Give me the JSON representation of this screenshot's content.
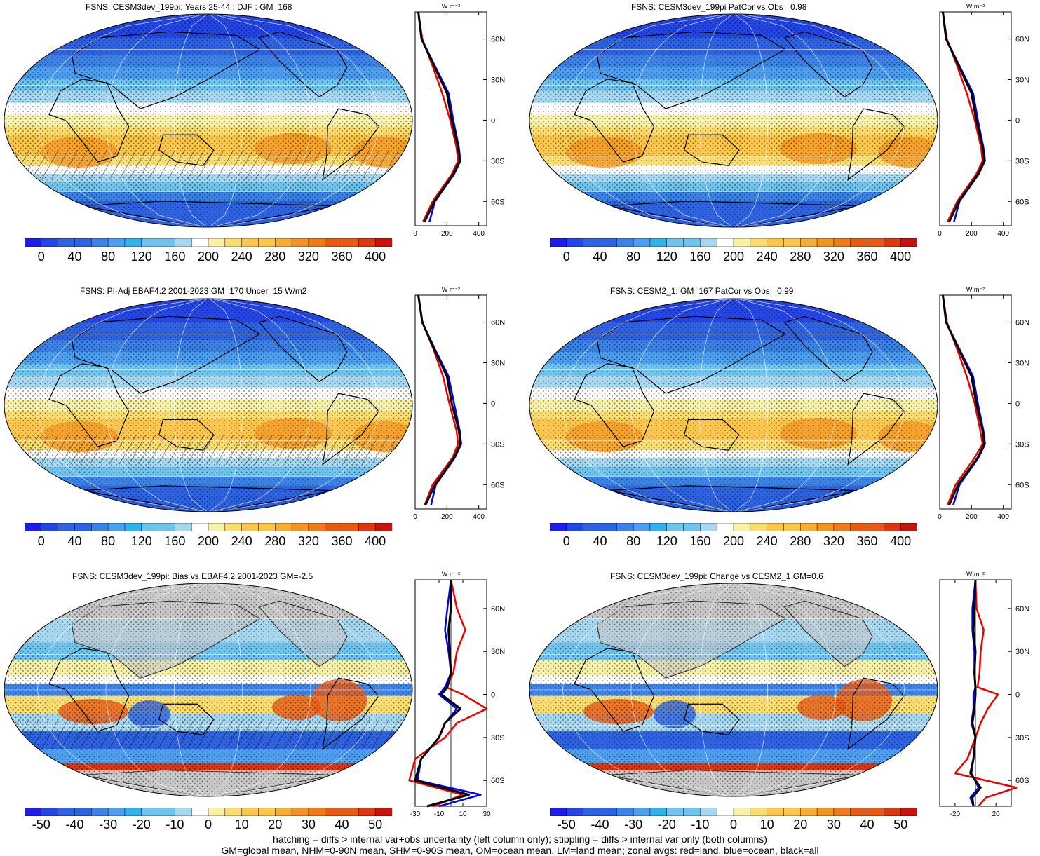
{
  "panels": [
    {
      "title": "FSNS: CESM3dev_199pi: Years 25-44 : DJF : GM=168",
      "scale": "abs",
      "hatch": true
    },
    {
      "title": "FSNS: CESM3dev_199pi PatCor vs Obs =0.98",
      "scale": "abs",
      "hatch": false
    },
    {
      "title": "FSNS: PI-Adj EBAF4.2 2001-2023 GM=170 Uncer=15 W/m2",
      "scale": "abs",
      "hatch": true
    },
    {
      "title": "FSNS: CESM2_1: GM=167 PatCor vs Obs =0.99",
      "scale": "abs",
      "hatch": false
    },
    {
      "title": "FSNS: CESM3dev_199pi: Bias vs EBAF4.2 2001-2023 GM=-2.5",
      "scale": "diff",
      "hatch": true
    },
    {
      "title": "FSNS: CESM3dev_199pi: Change vs CESM2_1 GM=0.6",
      "scale": "diff",
      "hatch": false
    }
  ],
  "colorbars": {
    "abs": {
      "labels": [
        "0",
        "40",
        "80",
        "120",
        "160",
        "200",
        "240",
        "280",
        "320",
        "360",
        "400"
      ]
    },
    "diff": {
      "labels": [
        "-50",
        "-40",
        "-30",
        "-20",
        "-10",
        "0",
        "10",
        "20",
        "30",
        "40",
        "50"
      ]
    }
  },
  "zonal": {
    "unit": "W m⁻²",
    "lat_labels": [
      "60N",
      "30N",
      "0",
      "30S",
      "60S"
    ],
    "abs_xticks": [
      "0",
      "200",
      "400"
    ],
    "bias_xticks": [
      "-30",
      "-10",
      "10",
      "30"
    ],
    "change_xticks": [
      "-20",
      "20"
    ]
  },
  "footer": {
    "line1": "hatching = diffs > internal var+obs uncertainty (left column only); stippling = diffs > internal var only (both columns)",
    "line2": "GM=global mean, NHM=0-90N mean, SHM=0-90S mean, OM=ocean mean, LM=land mean; zonal avgs: red=land, blue=ocean, black=all"
  },
  "colors": {
    "abs_palette": [
      "#1e1eec",
      "#2546e6",
      "#2d63e2",
      "#3a82e6",
      "#4c9ff0",
      "#2fb1ea",
      "#6fc4ee",
      "#a6d8f2",
      "#ffffff",
      "#f7f2a8",
      "#fadd6e",
      "#fbc64a",
      "#f8ad32",
      "#f49420",
      "#ef7a18",
      "#e85a14",
      "#dd3712",
      "#c8120c"
    ],
    "land": "#c8c8c8",
    "zonal_land": "#ee0000",
    "zonal_ocean": "#0000ee",
    "zonal_all": "#000000"
  },
  "chart_data": [
    {
      "type": "heatmap",
      "panel": 1,
      "title": "FSNS: CESM3dev_199pi: Years 25-44 : DJF : GM=168",
      "ylabel": "W m-2",
      "lat": [
        80,
        60,
        40,
        20,
        0,
        -20,
        -30,
        -40,
        -60,
        -75
      ],
      "zonal_all": [
        20,
        40,
        120,
        200,
        230,
        270,
        280,
        240,
        120,
        60
      ],
      "zonal_land": [
        20,
        45,
        110,
        170,
        220,
        260,
        270,
        230,
        110,
        50
      ],
      "zonal_ocean": [
        20,
        40,
        125,
        210,
        240,
        275,
        285,
        245,
        125,
        90
      ],
      "xlim": [
        0,
        450
      ]
    },
    {
      "type": "heatmap",
      "panel": 2,
      "title": "FSNS: CESM3dev_199pi PatCor vs Obs =0.98",
      "lat": [
        80,
        60,
        40,
        20,
        0,
        -20,
        -30,
        -40,
        -60,
        -75
      ],
      "zonal_all": [
        20,
        40,
        120,
        200,
        230,
        270,
        280,
        240,
        120,
        60
      ],
      "zonal_land": [
        20,
        45,
        110,
        170,
        220,
        260,
        270,
        230,
        110,
        50
      ],
      "zonal_ocean": [
        20,
        40,
        125,
        210,
        240,
        275,
        285,
        245,
        125,
        90
      ],
      "xlim": [
        0,
        450
      ]
    },
    {
      "type": "heatmap",
      "panel": 3,
      "title": "FSNS: PI-Adj EBAF4.2 2001-2023 GM=170 Uncer=15 W/m2",
      "lat": [
        80,
        60,
        40,
        20,
        0,
        -20,
        -30,
        -40,
        -60,
        -75
      ],
      "zonal_all": [
        20,
        45,
        120,
        200,
        230,
        275,
        285,
        245,
        125,
        65
      ],
      "zonal_land": [
        20,
        45,
        115,
        175,
        215,
        260,
        270,
        235,
        110,
        60
      ],
      "zonal_ocean": [
        20,
        45,
        125,
        210,
        245,
        280,
        290,
        250,
        130,
        100
      ],
      "xlim": [
        0,
        450
      ]
    },
    {
      "type": "heatmap",
      "panel": 4,
      "title": "FSNS: CESM2_1: GM=167 PatCor vs Obs =0.99",
      "lat": [
        80,
        60,
        40,
        20,
        0,
        -20,
        -30,
        -40,
        -60,
        -75
      ],
      "zonal_all": [
        20,
        40,
        120,
        200,
        230,
        270,
        280,
        240,
        115,
        60
      ],
      "zonal_land": [
        20,
        45,
        110,
        170,
        220,
        255,
        270,
        220,
        100,
        50
      ],
      "zonal_ocean": [
        20,
        40,
        125,
        210,
        240,
        275,
        285,
        245,
        125,
        85
      ],
      "xlim": [
        0,
        450
      ]
    },
    {
      "type": "heatmap",
      "panel": 5,
      "title": "FSNS: CESM3dev_199pi: Bias vs EBAF4.2 2001-2023 GM=-2.5",
      "lat": [
        80,
        60,
        45,
        30,
        15,
        5,
        0,
        -10,
        -20,
        -30,
        -45,
        -60,
        -70,
        -78
      ],
      "zonal_all": [
        0,
        0,
        -2,
        -1,
        0,
        -3,
        -8,
        8,
        -5,
        -10,
        -25,
        -30,
        15,
        -20
      ],
      "zonal_land": [
        0,
        5,
        12,
        5,
        2,
        -4,
        10,
        30,
        5,
        -5,
        -30,
        -35,
        10,
        -15
      ],
      "zonal_ocean": [
        0,
        -3,
        -5,
        -2,
        0,
        -5,
        -10,
        5,
        -5,
        -10,
        -25,
        -28,
        25,
        -10
      ],
      "xlim": [
        -30,
        30
      ]
    },
    {
      "type": "heatmap",
      "panel": 6,
      "title": "FSNS: CESM3dev_199pi: Change vs CESM2_1 GM=0.6",
      "lat": [
        80,
        60,
        45,
        30,
        15,
        5,
        0,
        -10,
        -20,
        -30,
        -45,
        -55,
        -65,
        -72,
        -78
      ],
      "zonal_all": [
        0,
        -1,
        -2,
        0,
        -1,
        0,
        0,
        -1,
        -3,
        0,
        -2,
        -5,
        5,
        -3,
        -2
      ],
      "zonal_land": [
        0,
        1,
        8,
        5,
        4,
        2,
        22,
        12,
        5,
        0,
        -8,
        -20,
        40,
        10,
        3
      ],
      "zonal_ocean": [
        0,
        -3,
        -3,
        -1,
        -1,
        0,
        -2,
        -2,
        -4,
        0,
        -2,
        -4,
        3,
        -5,
        -2
      ],
      "xlim": [
        -35,
        35
      ]
    }
  ]
}
